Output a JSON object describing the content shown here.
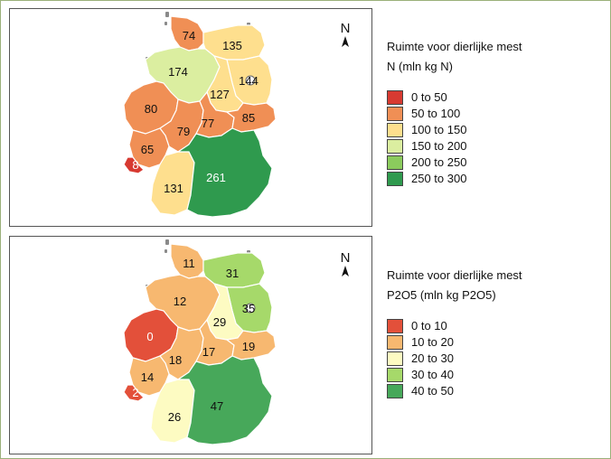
{
  "colors": {
    "c1": "#d73a31",
    "c2": "#f08f55",
    "c3": "#fedf8e",
    "c4": "#dbeea0",
    "c5": "#8bcb5d",
    "c6": "#2f9a4e",
    "p1": "#e3503a",
    "p2": "#f7b870",
    "p3": "#fdfbc2",
    "p4": "#a6d96a",
    "p5": "#47a85a"
  },
  "maps": [
    {
      "north_label": "N",
      "legend": {
        "title_line1": "Ruimte voor dierlijke mest",
        "title_line2": "N (mln kg N)",
        "items": [
          {
            "label": "0 to  50",
            "color": "#d73a31"
          },
          {
            "label": "50 to 100",
            "color": "#f08f55"
          },
          {
            "label": "100 to 150",
            "color": "#fedf8e"
          },
          {
            "label": "150 to 200",
            "color": "#dbeea0"
          },
          {
            "label": "200 to 250",
            "color": "#8bcb5d"
          },
          {
            "label": "250 to 300",
            "color": "#2f9a4e"
          }
        ]
      },
      "regions": [
        {
          "name": "Schleswig-Holstein",
          "value": "74"
        },
        {
          "name": "Mecklenburg-Vorpommern",
          "value": "135"
        },
        {
          "name": "Niedersachsen",
          "value": "174"
        },
        {
          "name": "Brandenburg",
          "value": "144"
        },
        {
          "name": "Sachsen-Anhalt",
          "value": "127"
        },
        {
          "name": "Nordrhein-Westfalen",
          "value": "80"
        },
        {
          "name": "Hessen",
          "value": "79"
        },
        {
          "name": "Thueringen",
          "value": "77"
        },
        {
          "name": "Sachsen",
          "value": "85"
        },
        {
          "name": "Rheinland-Pfalz",
          "value": "65"
        },
        {
          "name": "Saarland",
          "value": "8"
        },
        {
          "name": "Baden-Wuerttemberg",
          "value": "131"
        },
        {
          "name": "Bayern",
          "value": "261"
        }
      ]
    },
    {
      "north_label": "N",
      "legend": {
        "title_line1": "Ruimte voor dierlijke mest",
        "title_line2": "P2O5 (mln kg P2O5)",
        "items": [
          {
            "label": "0 to 10",
            "color": "#e3503a"
          },
          {
            "label": "10 to 20",
            "color": "#f7b870"
          },
          {
            "label": "20 to 30",
            "color": "#fdfbc2"
          },
          {
            "label": "30 to 40",
            "color": "#a6d96a"
          },
          {
            "label": "40 to 50",
            "color": "#47a85a"
          }
        ]
      },
      "regions": [
        {
          "name": "Schleswig-Holstein",
          "value": "11"
        },
        {
          "name": "Mecklenburg-Vorpommern",
          "value": "31"
        },
        {
          "name": "Niedersachsen",
          "value": "12"
        },
        {
          "name": "Brandenburg",
          "value": "35"
        },
        {
          "name": "Sachsen-Anhalt",
          "value": "29"
        },
        {
          "name": "Nordrhein-Westfalen",
          "value": "0"
        },
        {
          "name": "Hessen",
          "value": "18"
        },
        {
          "name": "Thueringen",
          "value": "17"
        },
        {
          "name": "Sachsen",
          "value": "19"
        },
        {
          "name": "Rheinland-Pfalz",
          "value": "14"
        },
        {
          "name": "Saarland",
          "value": "2"
        },
        {
          "name": "Baden-Wuerttemberg",
          "value": "26"
        },
        {
          "name": "Bayern",
          "value": "47"
        }
      ]
    }
  ]
}
